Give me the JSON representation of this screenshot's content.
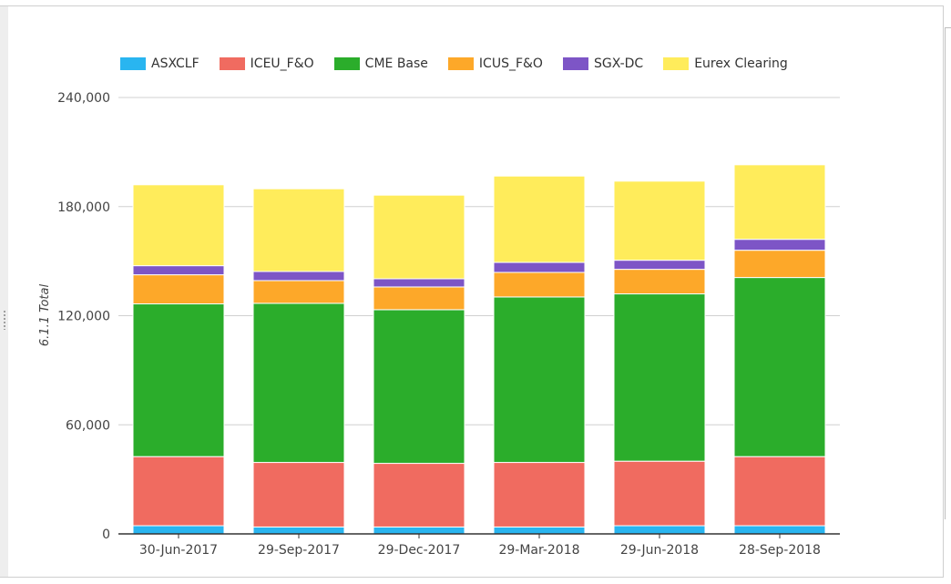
{
  "chart_data": {
    "type": "bar",
    "stacked": true,
    "categories": [
      "30-Jun-2017",
      "29-Sep-2017",
      "29-Dec-2017",
      "29-Mar-2018",
      "29-Jun-2018",
      "28-Sep-2018"
    ],
    "series": [
      {
        "name": "ASXCLF",
        "color": "#29b5f0",
        "values": [
          4500,
          3800,
          3800,
          3800,
          4500,
          4500
        ]
      },
      {
        "name": "ICEU_F&O",
        "color": "#f06b60",
        "values": [
          38000,
          35500,
          35000,
          35500,
          35500,
          38000
        ]
      },
      {
        "name": "CME Base",
        "color": "#2bad2b",
        "values": [
          84000,
          87500,
          84500,
          91000,
          92000,
          98500
        ]
      },
      {
        "name": "ICUS_F&O",
        "color": "#fda829",
        "values": [
          16000,
          12500,
          12500,
          13500,
          13500,
          15000
        ]
      },
      {
        "name": "SGX-DC",
        "color": "#7d55c6",
        "values": [
          5000,
          5000,
          4500,
          5500,
          5000,
          6000
        ]
      },
      {
        "name": "Eurex Clearing",
        "color": "#ffec5b",
        "values": [
          44500,
          45500,
          46000,
          47500,
          43500,
          41000
        ]
      }
    ],
    "title": "",
    "xlabel": "",
    "ylabel": "6.1.1 Total",
    "ylim": [
      0,
      240000
    ],
    "yticks": [
      "0",
      "60,000",
      "120,000",
      "180,000",
      "240,000"
    ],
    "grid": true,
    "legend_position": "top"
  }
}
